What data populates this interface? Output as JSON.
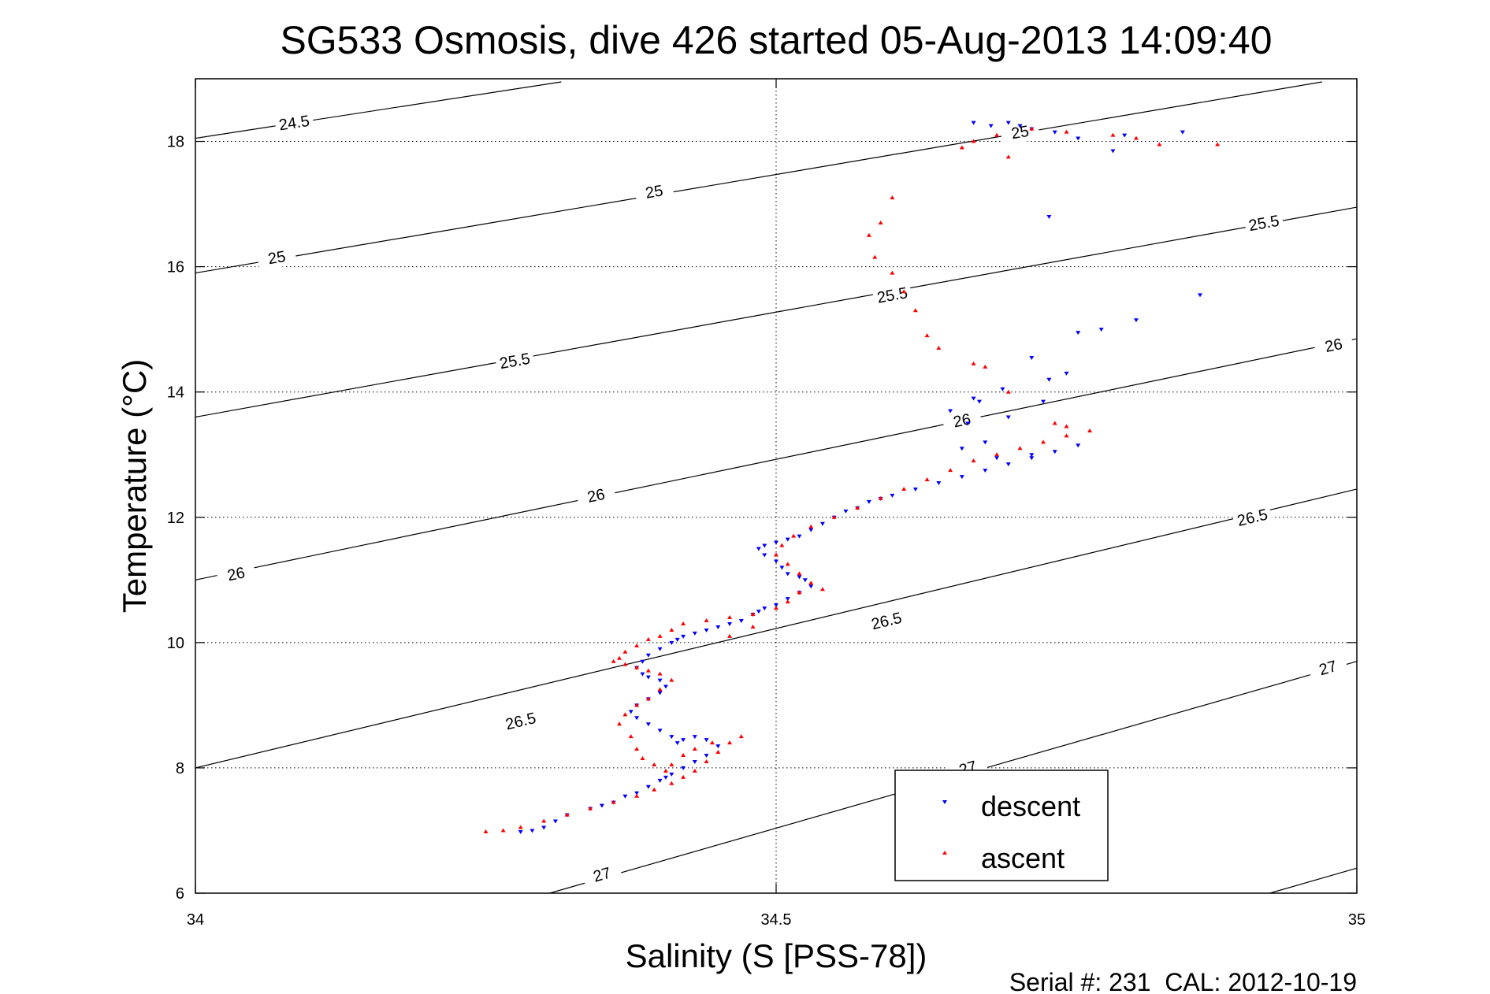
{
  "chart_data": {
    "type": "scatter",
    "title": "SG533 Osmosis, dive 426 started 05-Aug-2013 14:09:40",
    "xlabel": "Salinity (S [PSS-78])",
    "ylabel": "Temperature (°C)",
    "xlim": [
      34,
      35
    ],
    "ylim": [
      6,
      19
    ],
    "x_ticks": [
      "34",
      "34.5",
      "35"
    ],
    "y_ticks": [
      "6",
      "8",
      "10",
      "12",
      "14",
      "16",
      "18"
    ],
    "grid": "dotted",
    "legend_position": "bottom-right",
    "footer": "Serial #: 231  CAL: 2012-10-19",
    "density_contours": [
      {
        "label": "24.5",
        "points": [
          [
            34.0,
            18.05
          ],
          [
            34.315,
            18.95
          ]
        ],
        "labels_at": [
          [
            34.085,
            18.3
          ]
        ]
      },
      {
        "label": "25",
        "points": [
          [
            34.0,
            15.9
          ],
          [
            34.97,
            18.95
          ]
        ],
        "labels_at": [
          [
            34.07,
            16.15
          ],
          [
            34.395,
            17.2
          ],
          [
            34.71,
            18.15
          ]
        ]
      },
      {
        "label": "25.5",
        "points": [
          [
            34.0,
            13.6
          ],
          [
            35.0,
            16.95
          ]
        ],
        "labels_at": [
          [
            34.275,
            14.5
          ],
          [
            34.6,
            15.55
          ],
          [
            34.92,
            16.7
          ]
        ]
      },
      {
        "label": "26",
        "points": [
          [
            34.0,
            11.0
          ],
          [
            35.0,
            14.85
          ]
        ],
        "labels_at": [
          [
            34.035,
            11.1
          ],
          [
            34.345,
            12.35
          ],
          [
            34.66,
            13.55
          ],
          [
            34.98,
            14.75
          ]
        ]
      },
      {
        "label": "26.5",
        "points": [
          [
            34.0,
            8.0
          ],
          [
            35.0,
            12.45
          ]
        ],
        "labels_at": [
          [
            34.28,
            8.75
          ],
          [
            34.595,
            10.35
          ],
          [
            34.91,
            12.0
          ]
        ]
      },
      {
        "label": "27",
        "points": [
          [
            34.305,
            6.0
          ],
          [
            35.0,
            9.7
          ]
        ],
        "labels_at": [
          [
            34.35,
            6.3
          ],
          [
            34.665,
            8.0
          ],
          [
            34.975,
            9.6
          ]
        ]
      },
      {
        "label": "",
        "points": [
          [
            34.925,
            6.0
          ],
          [
            35.0,
            6.4
          ]
        ],
        "labels_at": []
      }
    ],
    "series": [
      {
        "name": "descent",
        "color": "#0000ff",
        "marker": "triangle-down",
        "x": [
          34.28,
          34.29,
          34.3,
          34.31,
          34.32,
          34.34,
          34.35,
          34.36,
          34.37,
          34.38,
          34.39,
          34.4,
          34.405,
          34.41,
          34.42,
          34.43,
          34.44,
          34.45,
          34.44,
          34.43,
          34.42,
          34.415,
          34.41,
          34.4,
          34.39,
          34.38,
          34.375,
          34.38,
          34.39,
          34.4,
          34.405,
          34.4,
          34.39,
          34.385,
          34.38,
          34.385,
          34.39,
          34.4,
          34.41,
          34.415,
          34.42,
          34.43,
          34.44,
          34.45,
          34.46,
          34.47,
          34.48,
          34.485,
          34.49,
          34.5,
          34.51,
          34.52,
          34.53,
          34.525,
          34.52,
          34.51,
          34.505,
          34.5,
          34.49,
          34.485,
          34.49,
          34.5,
          34.51,
          34.52,
          34.53,
          34.54,
          34.55,
          34.56,
          34.57,
          34.58,
          34.59,
          34.6,
          34.62,
          34.64,
          34.66,
          34.68,
          34.7,
          34.72,
          34.74,
          34.76,
          34.665,
          34.68,
          34.69,
          34.675,
          34.66,
          34.65,
          34.67,
          34.7,
          34.72,
          34.73,
          34.75,
          34.735,
          34.695,
          34.72,
          34.76,
          34.78,
          34.81,
          34.79,
          34.735,
          34.67,
          34.685,
          34.7,
          34.71,
          34.72,
          34.74,
          34.76,
          34.8,
          34.85,
          34.865
        ],
        "y": [
          6.98,
          7.0,
          7.05,
          7.15,
          7.25,
          7.35,
          7.4,
          7.45,
          7.55,
          7.6,
          7.7,
          7.8,
          7.85,
          7.9,
          8.0,
          8.1,
          8.2,
          8.35,
          8.45,
          8.5,
          8.45,
          8.4,
          8.5,
          8.6,
          8.7,
          8.8,
          8.9,
          9.0,
          9.1,
          9.2,
          9.3,
          9.4,
          9.45,
          9.5,
          9.6,
          9.7,
          9.8,
          9.9,
          10.0,
          10.05,
          10.1,
          10.15,
          10.2,
          10.25,
          10.3,
          10.35,
          10.45,
          10.5,
          10.55,
          10.6,
          10.7,
          10.8,
          10.9,
          11.0,
          11.05,
          11.1,
          11.2,
          11.3,
          11.4,
          11.5,
          11.55,
          11.6,
          11.65,
          11.7,
          11.8,
          11.9,
          12.0,
          12.1,
          12.15,
          12.25,
          12.3,
          12.35,
          12.45,
          12.55,
          12.65,
          12.75,
          12.85,
          12.95,
          13.05,
          13.15,
          13.5,
          13.2,
          12.95,
          13.85,
          13.1,
          13.7,
          13.9,
          13.6,
          13.0,
          13.85,
          14.3,
          14.2,
          14.05,
          14.55,
          14.95,
          15.0,
          15.15,
          17.85,
          16.8,
          18.3,
          18.25,
          18.3,
          18.25,
          18.2,
          18.15,
          18.05,
          18.1,
          18.15,
          15.55
        ]
      },
      {
        "name": "ascent",
        "color": "#ff0000",
        "marker": "triangle-up",
        "x": [
          34.25,
          34.265,
          34.28,
          34.3,
          34.32,
          34.34,
          34.36,
          34.38,
          34.395,
          34.41,
          34.42,
          34.43,
          34.44,
          34.45,
          34.46,
          34.47,
          34.445,
          34.43,
          34.42,
          34.41,
          34.405,
          34.395,
          34.385,
          34.38,
          34.375,
          34.365,
          34.37,
          34.38,
          34.39,
          34.4,
          34.41,
          34.4,
          34.39,
          34.38,
          34.37,
          34.36,
          34.365,
          34.37,
          34.38,
          34.39,
          34.4,
          34.41,
          34.42,
          34.44,
          34.46,
          34.48,
          34.5,
          34.51,
          34.52,
          34.53,
          34.52,
          34.51,
          34.5,
          34.505,
          34.515,
          34.53,
          34.55,
          34.57,
          34.59,
          34.61,
          34.63,
          34.65,
          34.67,
          34.69,
          34.71,
          34.73,
          34.75,
          34.77,
          34.52,
          34.54,
          34.48,
          34.46,
          34.75,
          34.74,
          34.7,
          34.68,
          34.67,
          34.64,
          34.63,
          34.62,
          34.61,
          34.6,
          34.585,
          34.58,
          34.59,
          34.6,
          34.66,
          34.67,
          34.69,
          34.72,
          34.75,
          34.79,
          34.81,
          34.83,
          34.7,
          34.88
        ],
        "y": [
          6.98,
          7.0,
          7.05,
          7.15,
          7.25,
          7.35,
          7.45,
          7.55,
          7.65,
          7.75,
          7.85,
          7.95,
          8.1,
          8.25,
          8.4,
          8.5,
          8.4,
          8.3,
          8.2,
          8.05,
          7.95,
          8.05,
          8.15,
          8.3,
          8.5,
          8.7,
          8.85,
          9.0,
          9.1,
          9.25,
          9.4,
          9.5,
          9.55,
          9.6,
          9.65,
          9.7,
          9.75,
          9.85,
          9.95,
          10.05,
          10.1,
          10.2,
          10.3,
          10.35,
          10.4,
          10.45,
          10.55,
          10.65,
          10.8,
          10.95,
          11.1,
          11.25,
          11.4,
          11.55,
          11.7,
          11.85,
          12.0,
          12.15,
          12.3,
          12.45,
          12.6,
          12.75,
          12.9,
          13.0,
          13.1,
          13.2,
          13.3,
          13.38,
          10.8,
          10.85,
          10.25,
          10.1,
          13.45,
          13.5,
          14.0,
          14.4,
          14.45,
          14.7,
          14.9,
          15.3,
          15.6,
          15.9,
          16.15,
          16.5,
          16.7,
          17.1,
          17.9,
          18.0,
          18.1,
          18.2,
          18.15,
          18.1,
          18.05,
          17.95,
          17.75,
          17.95
        ]
      }
    ]
  }
}
